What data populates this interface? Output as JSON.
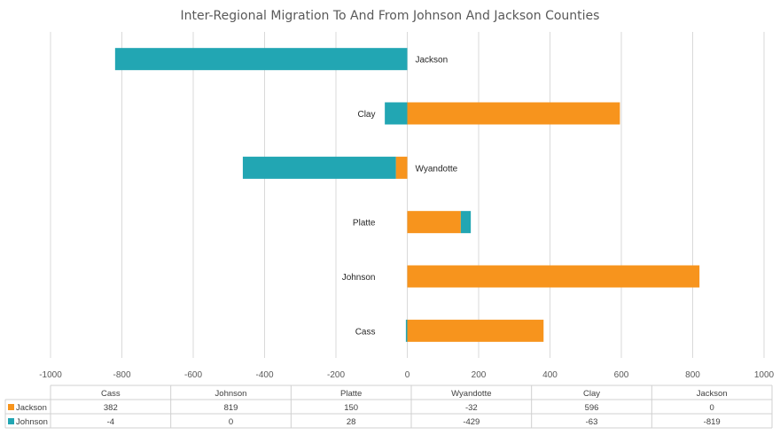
{
  "chart_data": {
    "type": "bar",
    "orientation": "horizontal",
    "stacked": true,
    "title": "Inter-Regional Migration To And From Johnson And Jackson Counties",
    "categories": [
      "Cass",
      "Johnson",
      "Platte",
      "Wyandotte",
      "Clay",
      "Jackson"
    ],
    "series": [
      {
        "name": "Jackson",
        "color": "#F7941D",
        "values": [
          382,
          819,
          150,
          -32,
          596,
          0
        ]
      },
      {
        "name": "Johnson",
        "color": "#22A6B3",
        "values": [
          -4,
          0,
          28,
          -429,
          -63,
          -819
        ]
      }
    ],
    "xlim": [
      -1000,
      1000
    ],
    "xticks": [
      -1000,
      -800,
      -600,
      -400,
      -200,
      0,
      200,
      400,
      600,
      800,
      1000
    ],
    "grid": true,
    "data_table": true
  }
}
